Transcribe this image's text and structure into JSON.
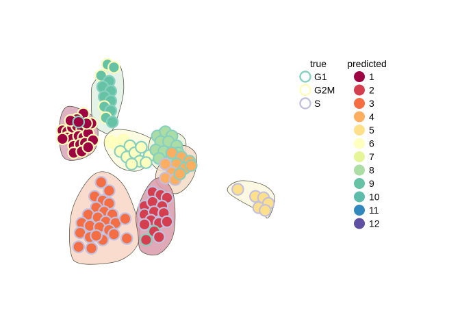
{
  "chart_data": {
    "type": "scatter",
    "title": "",
    "xlabel": "",
    "ylabel": "",
    "grid": false,
    "axes_visible": false,
    "point_fill_encodes": "predicted",
    "point_outline_encodes": "true",
    "legend_placement": "right",
    "legends": {
      "true": {
        "title": "true",
        "entries": [
          {
            "label": "G1",
            "color": "#87d0c0"
          },
          {
            "label": "G2M",
            "color": "#fffdb8"
          },
          {
            "label": "S",
            "color": "#c2c0de"
          }
        ]
      },
      "predicted": {
        "title": "predicted",
        "entries": [
          {
            "label": "1",
            "color": "#9e0142"
          },
          {
            "label": "2",
            "color": "#d53e4f"
          },
          {
            "label": "3",
            "color": "#f46d43"
          },
          {
            "label": "4",
            "color": "#fdae61"
          },
          {
            "label": "5",
            "color": "#fee08b"
          },
          {
            "label": "6",
            "color": "#ffffbf"
          },
          {
            "label": "7",
            "color": "#e6f598"
          },
          {
            "label": "8",
            "color": "#abdda4"
          },
          {
            "label": "9",
            "color": "#66c2a5"
          },
          {
            "label": "10",
            "color": "#5dbcaa"
          },
          {
            "label": "11",
            "color": "#3288bd"
          },
          {
            "label": "12",
            "color": "#5e4fa2"
          }
        ]
      }
    },
    "clusters": [
      {
        "predicted": "1",
        "fill": "#d8a3b8",
        "hull": [
          [
            -2.7,
            7.3
          ],
          [
            -2.2,
            8.7
          ],
          [
            -0.7,
            8.1
          ],
          [
            -0.3,
            7.2
          ],
          [
            -0.5,
            5.6
          ],
          [
            -1.6,
            4.9
          ],
          [
            -2.5,
            5.2
          ]
        ],
        "points": [
          [
            -2.5,
            7.0,
            "G2M"
          ],
          [
            -2.2,
            6.9,
            "G2M"
          ],
          [
            -1.9,
            7.2,
            "G2M"
          ],
          [
            -1.6,
            7.3,
            "G2M"
          ],
          [
            -1.3,
            7.1,
            "G2M"
          ],
          [
            -2.2,
            6.5,
            "G2M"
          ],
          [
            -1.9,
            6.4,
            "G2M"
          ],
          [
            -1.5,
            6.6,
            "G2M"
          ],
          [
            -1.2,
            6.5,
            "G2M"
          ],
          [
            -0.9,
            6.8,
            "G2M"
          ],
          [
            -1.8,
            5.9,
            "G2M"
          ],
          [
            -1.4,
            6.0,
            "G2M"
          ],
          [
            -1.1,
            6.1,
            "G2M"
          ],
          [
            -1.8,
            5.4,
            "G2M"
          ],
          [
            -1.3,
            5.5,
            "G2M"
          ],
          [
            -1.2,
            8.2,
            "G2M"
          ],
          [
            -0.7,
            7.5,
            "G2M"
          ],
          [
            -0.6,
            6.3,
            "G2M"
          ],
          [
            -1.6,
            7.8,
            "G2M"
          ],
          [
            -2.0,
            7.7,
            "G2M"
          ],
          [
            -1.0,
            7.5,
            "G2M"
          ],
          [
            -1.5,
            7.6,
            "G1"
          ],
          [
            -2.5,
            6.4,
            "G2M"
          ],
          [
            -0.9,
            5.8,
            "G2M"
          ]
        ]
      },
      {
        "predicted": "9",
        "fill": "#dff0e3",
        "hull": [
          [
            -0.5,
            10.5
          ],
          [
            0.9,
            11.8
          ],
          [
            1.3,
            9.8
          ],
          [
            0.6,
            7.0
          ],
          [
            0.0,
            6.9
          ],
          [
            -0.6,
            7.6
          ],
          [
            -0.7,
            9.4
          ]
        ],
        "points": [
          [
            0.3,
            11.7,
            "G2M"
          ],
          [
            0.7,
            11.5,
            "G2M"
          ],
          [
            -0.1,
            10.9,
            "G2M"
          ],
          [
            0.4,
            10.5,
            "G1"
          ],
          [
            0.0,
            10.1,
            "G1"
          ],
          [
            0.5,
            9.8,
            "G1"
          ],
          [
            0.1,
            9.4,
            "G1"
          ],
          [
            0.5,
            9.1,
            "G1"
          ],
          [
            0.1,
            8.7,
            "G2M"
          ],
          [
            0.5,
            8.4,
            "G1"
          ],
          [
            0.2,
            7.9,
            "G2M"
          ],
          [
            0.6,
            7.6,
            "G1"
          ]
        ]
      },
      {
        "predicted": "6",
        "fill": "#fbfbdd",
        "hull": [
          [
            0.1,
            6.0
          ],
          [
            0.6,
            7.0
          ],
          [
            2.0,
            6.9
          ],
          [
            3.3,
            6.1
          ],
          [
            3.0,
            4.8
          ],
          [
            2.1,
            4.1
          ],
          [
            0.9,
            4.5
          ]
        ],
        "points": [
          [
            0.5,
            6.2,
            "G2M"
          ],
          [
            0.9,
            6.0,
            "G2M"
          ],
          [
            1.3,
            6.3,
            "G2M"
          ],
          [
            1.7,
            5.9,
            "G1"
          ],
          [
            1.1,
            5.5,
            "G1"
          ],
          [
            1.5,
            5.1,
            "G1"
          ],
          [
            2.0,
            5.4,
            "G1"
          ],
          [
            2.4,
            5.8,
            "G1"
          ],
          [
            2.9,
            5.2,
            "G1"
          ],
          [
            2.3,
            4.8,
            "G1"
          ],
          [
            1.8,
            4.6,
            "G1"
          ],
          [
            2.7,
            4.7,
            "G1"
          ]
        ]
      },
      {
        "predicted": "8",
        "fill": "#eaf3dc",
        "hull": [
          [
            3.0,
            6.5
          ],
          [
            3.8,
            7.1
          ],
          [
            5.1,
            6.4
          ],
          [
            4.9,
            4.8
          ],
          [
            3.7,
            4.1
          ],
          [
            2.9,
            5.0
          ]
        ],
        "points": [
          [
            3.4,
            6.6,
            "G1"
          ],
          [
            3.9,
            6.9,
            "G1"
          ],
          [
            4.3,
            6.6,
            "G1"
          ],
          [
            3.6,
            6.2,
            "G1"
          ],
          [
            4.1,
            6.2,
            "G1"
          ],
          [
            4.6,
            5.9,
            "G1"
          ],
          [
            3.3,
            5.6,
            "G1"
          ],
          [
            3.8,
            5.5,
            "G1"
          ],
          [
            4.3,
            5.1,
            "G1"
          ],
          [
            3.5,
            5.0,
            "G1"
          ],
          [
            4.7,
            5.4,
            "G1"
          ]
        ]
      },
      {
        "predicted": "4",
        "fill": "#f5dcc5",
        "hull": [
          [
            3.5,
            4.5
          ],
          [
            4.8,
            5.9
          ],
          [
            5.8,
            5.3
          ],
          [
            5.6,
            3.6
          ],
          [
            4.6,
            2.5
          ],
          [
            3.4,
            3.2
          ]
        ],
        "points": [
          [
            4.3,
            5.4,
            "G1"
          ],
          [
            4.9,
            5.1,
            "G1"
          ],
          [
            5.4,
            4.8,
            "G1"
          ],
          [
            4.6,
            4.6,
            "G1"
          ],
          [
            5.1,
            4.3,
            "G1"
          ],
          [
            5.5,
            4.5,
            "G1"
          ],
          [
            3.9,
            4.6,
            "S"
          ],
          [
            4.3,
            4.0,
            "S"
          ],
          [
            3.9,
            3.6,
            "S"
          ],
          [
            4.5,
            3.5,
            "S"
          ],
          [
            4.8,
            3.9,
            "G1"
          ]
        ]
      },
      {
        "predicted": "3",
        "fill": "#f9d6c7",
        "hull": [
          [
            -2.0,
            -1.6
          ],
          [
            -1.3,
            -2.5
          ],
          [
            1.2,
            -2.2
          ],
          [
            2.3,
            -0.5
          ],
          [
            1.5,
            2.7
          ],
          [
            0.3,
            4.0
          ],
          [
            -0.8,
            3.6
          ],
          [
            -1.9,
            1.3
          ]
        ],
        "points": [
          [
            -0.1,
            3.3,
            "S"
          ],
          [
            0.4,
            2.7,
            "S"
          ],
          [
            -0.5,
            2.3,
            "S"
          ],
          [
            0.0,
            2.0,
            "S"
          ],
          [
            0.4,
            1.8,
            "S"
          ],
          [
            -0.4,
            1.5,
            "S"
          ],
          [
            0.1,
            1.2,
            "S"
          ],
          [
            0.6,
            1.0,
            "S"
          ],
          [
            -0.9,
            1.0,
            "S"
          ],
          [
            -0.3,
            0.8,
            "S"
          ],
          [
            0.2,
            0.5,
            "S"
          ],
          [
            0.8,
            0.4,
            "S"
          ],
          [
            -1.3,
            0.4,
            "S"
          ],
          [
            -0.8,
            0.2,
            "S"
          ],
          [
            -0.2,
            0.1,
            "S"
          ],
          [
            0.4,
            -0.1,
            "S"
          ],
          [
            -1.4,
            -0.3,
            "S"
          ],
          [
            -0.8,
            -0.6,
            "S"
          ],
          [
            0.0,
            -0.8,
            "S"
          ],
          [
            -1.5,
            -1.3,
            "S"
          ],
          [
            -0.7,
            -1.4,
            "S"
          ],
          [
            1.5,
            -0.7,
            "S"
          ],
          [
            1.4,
            0.7,
            "S"
          ],
          [
            -0.4,
            -0.5,
            "S"
          ],
          [
            0.7,
            -0.4,
            "S"
          ]
        ]
      },
      {
        "predicted": "2",
        "fill": "#d99aaa",
        "hull": [
          [
            2.1,
            1.1
          ],
          [
            2.8,
            3.0
          ],
          [
            3.6,
            3.6
          ],
          [
            4.4,
            2.4
          ],
          [
            4.4,
            -0.4
          ],
          [
            3.5,
            -1.8
          ],
          [
            2.4,
            -1.6
          ],
          [
            2.2,
            -0.4
          ]
        ],
        "points": [
          [
            3.1,
            2.6,
            "S"
          ],
          [
            3.6,
            2.4,
            "S"
          ],
          [
            4.0,
            2.2,
            "S"
          ],
          [
            2.6,
            1.6,
            "S"
          ],
          [
            3.1,
            1.9,
            "S"
          ],
          [
            3.7,
            1.6,
            "S"
          ],
          [
            2.6,
            1.0,
            "S"
          ],
          [
            3.2,
            1.2,
            "S"
          ],
          [
            3.8,
            1.1,
            "S"
          ],
          [
            3.0,
            0.6,
            "S"
          ],
          [
            3.5,
            0.4,
            "S"
          ],
          [
            2.6,
            0.3,
            "S"
          ],
          [
            3.2,
            -0.2,
            "G1"
          ],
          [
            2.7,
            -0.8,
            "G1"
          ],
          [
            3.5,
            -0.6,
            "S"
          ],
          [
            4.0,
            0.5,
            "S"
          ]
        ]
      },
      {
        "predicted": "5",
        "fill": "#fbf7dd",
        "hull": [
          [
            7.8,
            2.6
          ],
          [
            8.5,
            3.4
          ],
          [
            10.0,
            3.1
          ],
          [
            10.7,
            2.2
          ],
          [
            10.3,
            0.8
          ],
          [
            9.8,
            1.2
          ]
        ],
        "points": [
          [
            8.4,
            2.8,
            "S"
          ],
          [
            9.5,
            2.3,
            "S"
          ],
          [
            10.0,
            2.2,
            "S"
          ],
          [
            10.3,
            1.8,
            "S"
          ],
          [
            9.7,
            1.5,
            "S"
          ],
          [
            10.1,
            1.3,
            "S"
          ]
        ]
      }
    ]
  }
}
